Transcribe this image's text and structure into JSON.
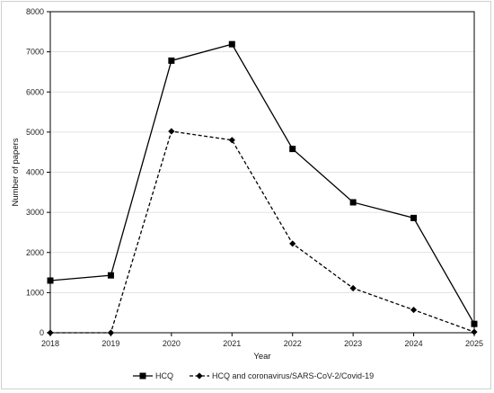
{
  "chart_data": {
    "type": "line",
    "x": [
      2018,
      2019,
      2020,
      2021,
      2022,
      2023,
      2024,
      2025
    ],
    "x_tick_labels": [
      "2018",
      "2019",
      "2020",
      "2021",
      "2022",
      "2023",
      "2024",
      "2025"
    ],
    "xlabel": "Year",
    "ylabel": "Number of papers",
    "ylim": [
      0,
      8000
    ],
    "y_ticks": [
      0,
      1000,
      2000,
      3000,
      4000,
      5000,
      6000,
      7000,
      8000
    ],
    "grid": "horizontal",
    "legend_position": "bottom",
    "series": [
      {
        "name": "HCQ",
        "marker": "square",
        "line_style": "solid",
        "color": "#000000",
        "values": [
          1300,
          1430,
          6780,
          7190,
          4580,
          3250,
          2860,
          220
        ]
      },
      {
        "name": "HCQ and coronavirus/SARS-CoV-2/Covid-19",
        "marker": "diamond",
        "line_style": "dashed",
        "color": "#000000",
        "values": [
          0,
          0,
          5020,
          4800,
          2220,
          1110,
          570,
          20
        ]
      }
    ]
  }
}
